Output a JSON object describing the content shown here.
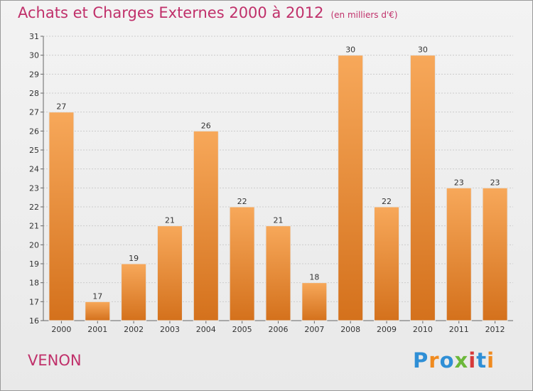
{
  "page": {
    "title": "Achats et Charges Externes 2000 à 2012",
    "subtitle": "(en milliers d'€)",
    "town": "VENON",
    "logo": "Proxiti"
  },
  "colors": {
    "title": "#c0306a",
    "bar_top": "#f7a85a",
    "bar_bottom": "#d4711c",
    "grid": "#cccccc",
    "logo_letters": [
      "#2f8fd6",
      "#f08a1e",
      "#2f8fd6",
      "#6cb83a",
      "#d63a3a",
      "#2f8fd6",
      "#f08a1e"
    ]
  },
  "chart_data": {
    "type": "bar",
    "title": "Achats et Charges Externes 2000 à 2012",
    "subtitle": "(en milliers d'€)",
    "xlabel": "",
    "ylabel": "",
    "categories": [
      "2000",
      "2001",
      "2002",
      "2003",
      "2004",
      "2005",
      "2006",
      "2007",
      "2008",
      "2009",
      "2010",
      "2011",
      "2012"
    ],
    "values": [
      27,
      17,
      19,
      21,
      26,
      22,
      21,
      18,
      30,
      22,
      30,
      23,
      23
    ],
    "ylim": [
      16,
      31
    ],
    "yticks": [
      16,
      17,
      18,
      19,
      20,
      21,
      22,
      23,
      24,
      25,
      26,
      27,
      28,
      29,
      30,
      31
    ],
    "grid": true,
    "data_labels": true
  }
}
